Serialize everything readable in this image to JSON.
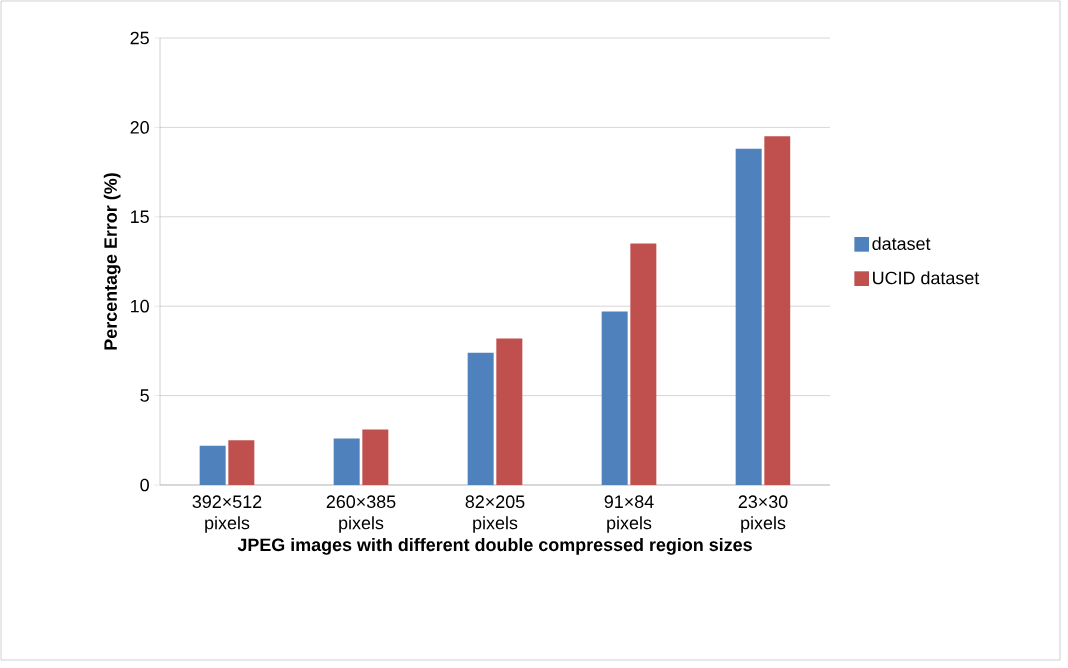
{
  "chart_data": {
    "type": "bar",
    "xlabel": "JPEG images with different double compressed region sizes",
    "ylabel": "Percentage Error (%)",
    "categories": [
      "392×512 pixels",
      "260×385 pixels",
      "82×205 pixels",
      "91×84 pixels",
      "23×30 pixels"
    ],
    "series": [
      {
        "name": "dataset",
        "color": "#4f81bd",
        "values": [
          2.2,
          2.6,
          7.4,
          9.7,
          18.8
        ]
      },
      {
        "name": "UCID dataset",
        "color": "#c0504d",
        "values": [
          2.5,
          3.1,
          8.2,
          13.5,
          19.5
        ]
      }
    ],
    "ylim": [
      0,
      25
    ],
    "yticks": [
      0,
      5,
      10,
      15,
      20,
      25
    ],
    "grid": "y",
    "legend": "right"
  }
}
